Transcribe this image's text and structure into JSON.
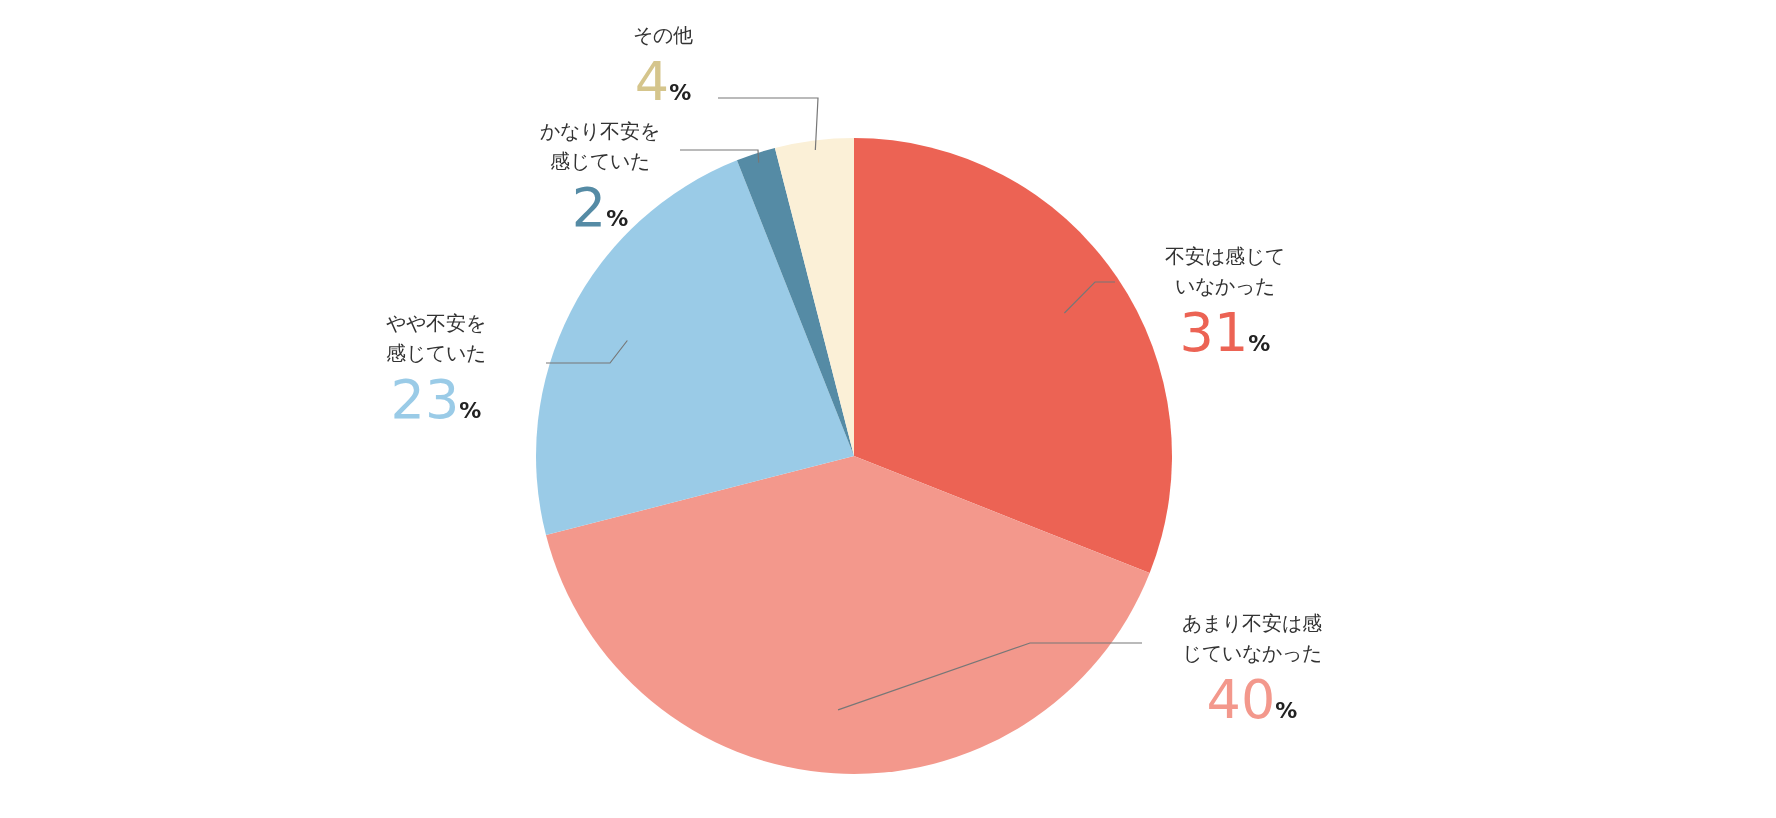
{
  "chart_data": {
    "type": "pie",
    "categories": [
      "不安は感じていなかった",
      "あまり不安は感じていなかった",
      "やや不安を感じていた",
      "かなり不安を感じていた",
      "その他"
    ],
    "values": [
      31,
      40,
      23,
      2,
      4
    ],
    "colors": [
      "#ec6354",
      "#f3988c",
      "#9acbe7",
      "#558ba5",
      "#fbf0d7"
    ],
    "value_labels": [
      "31%",
      "40%",
      "23%",
      "2%",
      "4%"
    ]
  }
}
